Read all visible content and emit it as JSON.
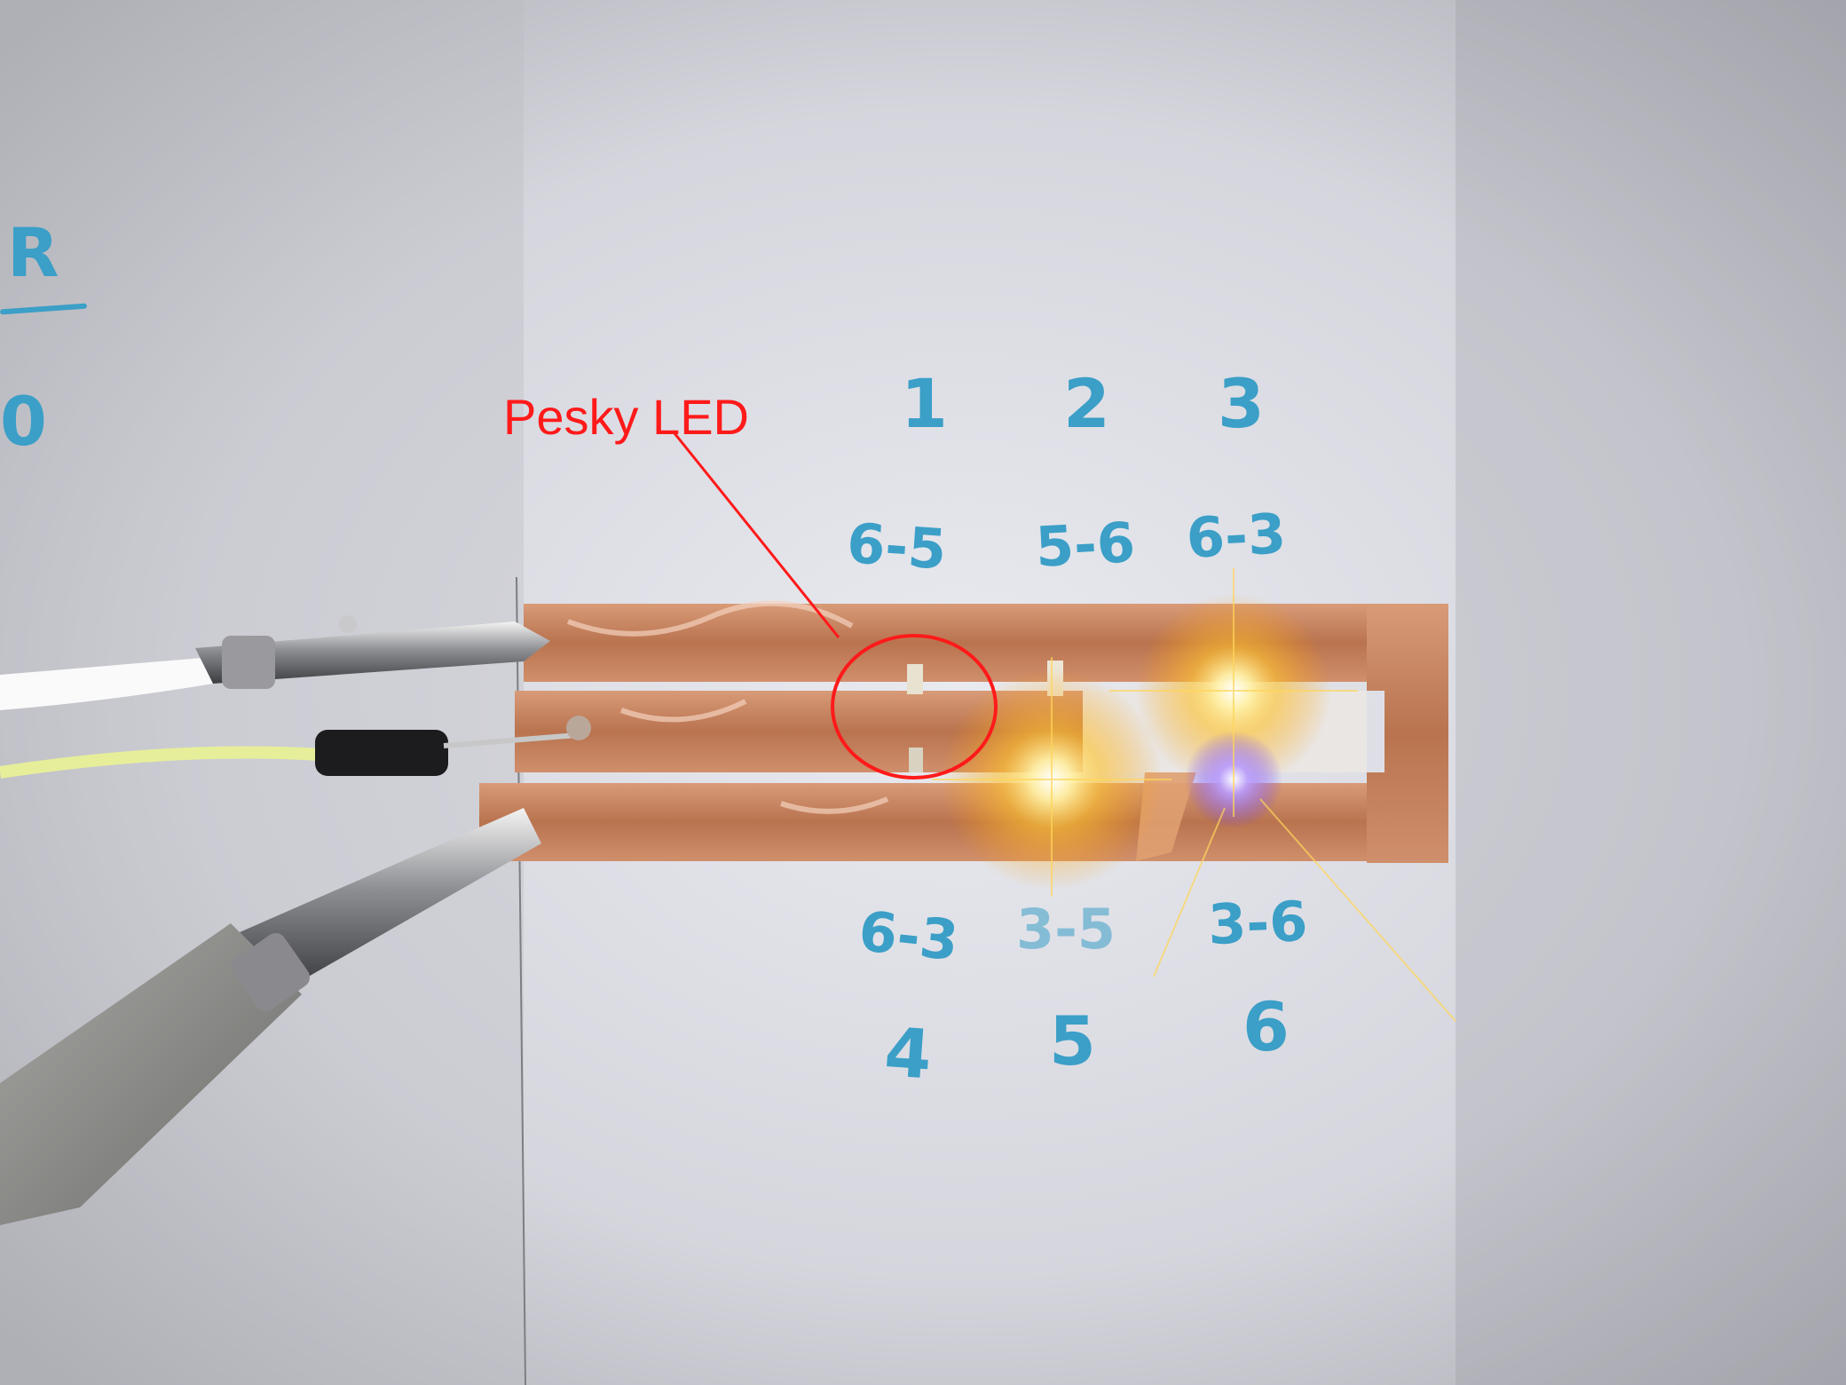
{
  "annotation": {
    "label": "Pesky LED",
    "color": "#ff1a1a"
  },
  "handwriting": {
    "color": "#3b9fc7",
    "top_numbers": [
      "1",
      "2",
      "3"
    ],
    "top_pairs": [
      "6-5",
      "5-6",
      "6-3"
    ],
    "bottom_pairs": [
      "6-3",
      "3-5",
      "3-6"
    ],
    "bottom_numbers": [
      "4",
      "5",
      "6"
    ],
    "edge_letter": "R",
    "edge_digit": "0"
  },
  "scene": {
    "board_color": "#d6d7de",
    "copper_color": "#c98a67",
    "led_glow_color": "#ffcc2a",
    "blue_led_color": "#8a55ff",
    "clip_colors": [
      "#ffffff",
      "#eaf0a0",
      "#8e8e8e"
    ]
  }
}
